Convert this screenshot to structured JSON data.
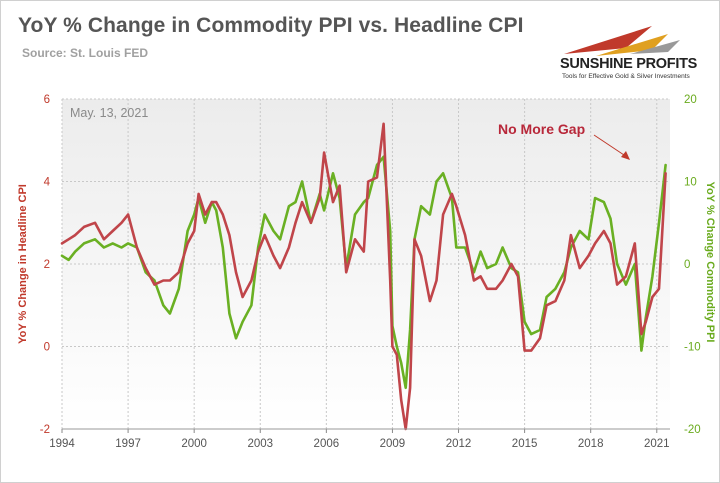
{
  "header": {
    "title": "YoY % Change in Commodity PPI vs. Headline CPI",
    "source": "Source: St. Louis FED"
  },
  "logo": {
    "name": "SUNSHINE PROFITS",
    "tagline": "Tools for Effective Gold & Silver Investments"
  },
  "colors": {
    "cpi": "#c0454a",
    "ppi": "#6ab023",
    "annotation": "#b8283a",
    "date_label": "#8a8a8a"
  },
  "chart_data": {
    "type": "line",
    "date_label": "May. 13, 2021",
    "annotation": "No More Gap",
    "x_ticks": [
      "1994",
      "1997",
      "2000",
      "2003",
      "2006",
      "2009",
      "2012",
      "2015",
      "2018",
      "2021"
    ],
    "x_range": [
      1994,
      2021.6
    ],
    "y_left": {
      "label": "YoY % Change in Headline CPI",
      "range": [
        -2,
        6
      ],
      "ticks": [
        "-2",
        "0",
        "2",
        "4",
        "6"
      ]
    },
    "y_right": {
      "label": "YoY % Change Commodity PPI",
      "range": [
        -20,
        20
      ],
      "ticks": [
        "-20",
        "-10",
        "0",
        "10",
        "20"
      ]
    },
    "grid": true,
    "series": [
      {
        "axis": "left",
        "x": [
          1994.0,
          1994.3,
          1994.6,
          1995.0,
          1995.5,
          1995.9,
          1996.3,
          1996.7,
          1997.0,
          1997.4,
          1997.8,
          1998.2,
          1998.6,
          1998.9,
          1999.3,
          1999.7,
          2000.0,
          2000.2,
          2000.5,
          2000.8,
          2001.0,
          2001.3,
          2001.6,
          2001.9,
          2002.2,
          2002.6,
          2002.9,
          2003.2,
          2003.6,
          2003.9,
          2004.3,
          2004.6,
          2004.9,
          2005.3,
          2005.7,
          2005.9,
          2006.3,
          2006.6,
          2006.9,
          2007.3,
          2007.7,
          2007.9,
          2008.3,
          2008.6,
          2008.9,
          2009.0,
          2009.2,
          2009.4,
          2009.6,
          2009.8,
          2010.0,
          2010.3,
          2010.7,
          2011.0,
          2011.3,
          2011.7,
          2011.9,
          2012.3,
          2012.7,
          2013.0,
          2013.3,
          2013.7,
          2014.0,
          2014.4,
          2014.7,
          2015.0,
          2015.3,
          2015.7,
          2016.0,
          2016.4,
          2016.8,
          2017.1,
          2017.5,
          2017.9,
          2018.2,
          2018.6,
          2018.9,
          2019.2,
          2019.6,
          2020.0,
          2020.3,
          2020.5,
          2020.8,
          2021.1,
          2021.4
        ],
        "y": [
          2.5,
          2.6,
          2.7,
          2.9,
          3.0,
          2.6,
          2.8,
          3.0,
          3.2,
          2.4,
          1.9,
          1.5,
          1.6,
          1.6,
          1.8,
          2.5,
          2.8,
          3.7,
          3.2,
          3.5,
          3.5,
          3.2,
          2.7,
          1.8,
          1.2,
          1.6,
          2.3,
          2.7,
          2.2,
          1.9,
          2.4,
          3.0,
          3.5,
          3.0,
          3.6,
          4.7,
          3.5,
          3.9,
          1.8,
          2.6,
          2.3,
          4.0,
          4.1,
          5.4,
          1.6,
          0.0,
          -0.2,
          -1.3,
          -2.0,
          -1.0,
          2.6,
          2.2,
          1.1,
          1.6,
          3.2,
          3.7,
          3.4,
          2.7,
          1.6,
          1.7,
          1.4,
          1.4,
          1.6,
          2.0,
          1.7,
          -0.1,
          -0.1,
          0.2,
          1.0,
          1.1,
          1.6,
          2.7,
          1.9,
          2.2,
          2.5,
          2.8,
          2.5,
          1.5,
          1.7,
          2.5,
          0.3,
          0.6,
          1.2,
          1.4,
          4.2
        ]
      },
      {
        "axis": "right",
        "x": [
          1994.0,
          1994.3,
          1994.6,
          1995.0,
          1995.5,
          1995.9,
          1996.3,
          1996.7,
          1997.0,
          1997.4,
          1997.8,
          1998.2,
          1998.6,
          1998.9,
          1999.3,
          1999.7,
          2000.0,
          2000.2,
          2000.5,
          2000.8,
          2001.0,
          2001.3,
          2001.6,
          2001.9,
          2002.2,
          2002.6,
          2002.9,
          2003.2,
          2003.6,
          2003.9,
          2004.3,
          2004.6,
          2004.9,
          2005.3,
          2005.7,
          2005.9,
          2006.3,
          2006.6,
          2006.9,
          2007.3,
          2007.7,
          2007.9,
          2008.3,
          2008.6,
          2008.9,
          2009.0,
          2009.2,
          2009.4,
          2009.6,
          2009.8,
          2010.0,
          2010.3,
          2010.7,
          2011.0,
          2011.3,
          2011.7,
          2011.9,
          2012.3,
          2012.7,
          2013.0,
          2013.3,
          2013.7,
          2014.0,
          2014.4,
          2014.7,
          2015.0,
          2015.3,
          2015.7,
          2016.0,
          2016.4,
          2016.8,
          2017.1,
          2017.5,
          2017.9,
          2018.2,
          2018.6,
          2018.9,
          2019.2,
          2019.6,
          2020.0,
          2020.3,
          2020.5,
          2020.8,
          2021.1,
          2021.4
        ],
        "y": [
          1.0,
          0.5,
          1.5,
          2.5,
          3.0,
          2.0,
          2.5,
          2.0,
          2.5,
          2.0,
          -1.0,
          -2.0,
          -5.0,
          -6.0,
          -3.0,
          4.0,
          6.0,
          8.0,
          5.0,
          7.5,
          6.5,
          2.0,
          -6.0,
          -9.0,
          -7.0,
          -5.0,
          2.0,
          6.0,
          4.0,
          3.0,
          7.0,
          7.5,
          10.0,
          5.0,
          8.5,
          6.5,
          11.0,
          8.0,
          -0.5,
          6.0,
          7.5,
          8.0,
          12.0,
          13.0,
          4.0,
          -7.5,
          -10.0,
          -12.0,
          -15.0,
          -8.0,
          3.0,
          7.0,
          6.0,
          10.0,
          11.0,
          8.0,
          2.0,
          2.0,
          -1.0,
          1.5,
          -0.5,
          0.0,
          2.0,
          -0.5,
          -1.0,
          -7.0,
          -8.5,
          -8.0,
          -4.0,
          -3.0,
          -1.0,
          2.0,
          4.0,
          3.0,
          8.0,
          7.5,
          5.5,
          0.0,
          -2.5,
          0.0,
          -10.5,
          -6.5,
          -1.5,
          5.0,
          12.0
        ]
      }
    ]
  }
}
